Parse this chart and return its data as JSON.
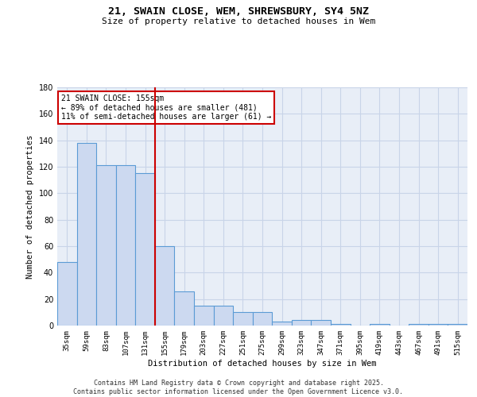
{
  "title": "21, SWAIN CLOSE, WEM, SHREWSBURY, SY4 5NZ",
  "subtitle": "Size of property relative to detached houses in Wem",
  "xlabel": "Distribution of detached houses by size in Wem",
  "ylabel": "Number of detached properties",
  "categories": [
    "35sqm",
    "59sqm",
    "83sqm",
    "107sqm",
    "131sqm",
    "155sqm",
    "179sqm",
    "203sqm",
    "227sqm",
    "251sqm",
    "275sqm",
    "299sqm",
    "323sqm",
    "347sqm",
    "371sqm",
    "395sqm",
    "419sqm",
    "443sqm",
    "467sqm",
    "491sqm",
    "515sqm"
  ],
  "values": [
    48,
    138,
    121,
    121,
    115,
    60,
    26,
    15,
    15,
    10,
    10,
    3,
    4,
    4,
    1,
    0,
    1,
    0,
    1,
    1,
    1
  ],
  "bar_color": "#ccd9f0",
  "bar_edge_color": "#5b9bd5",
  "vline_color": "#cc0000",
  "annotation_text": "21 SWAIN CLOSE: 155sqm\n← 89% of detached houses are smaller (481)\n11% of semi-detached houses are larger (61) →",
  "annotation_box_color": "#cc0000",
  "ylim": [
    0,
    180
  ],
  "yticks": [
    0,
    20,
    40,
    60,
    80,
    100,
    120,
    140,
    160,
    180
  ],
  "grid_color": "#c8d4e8",
  "bg_color": "#e8eef7",
  "footer": "Contains HM Land Registry data © Crown copyright and database right 2025.\nContains public sector information licensed under the Open Government Licence v3.0."
}
